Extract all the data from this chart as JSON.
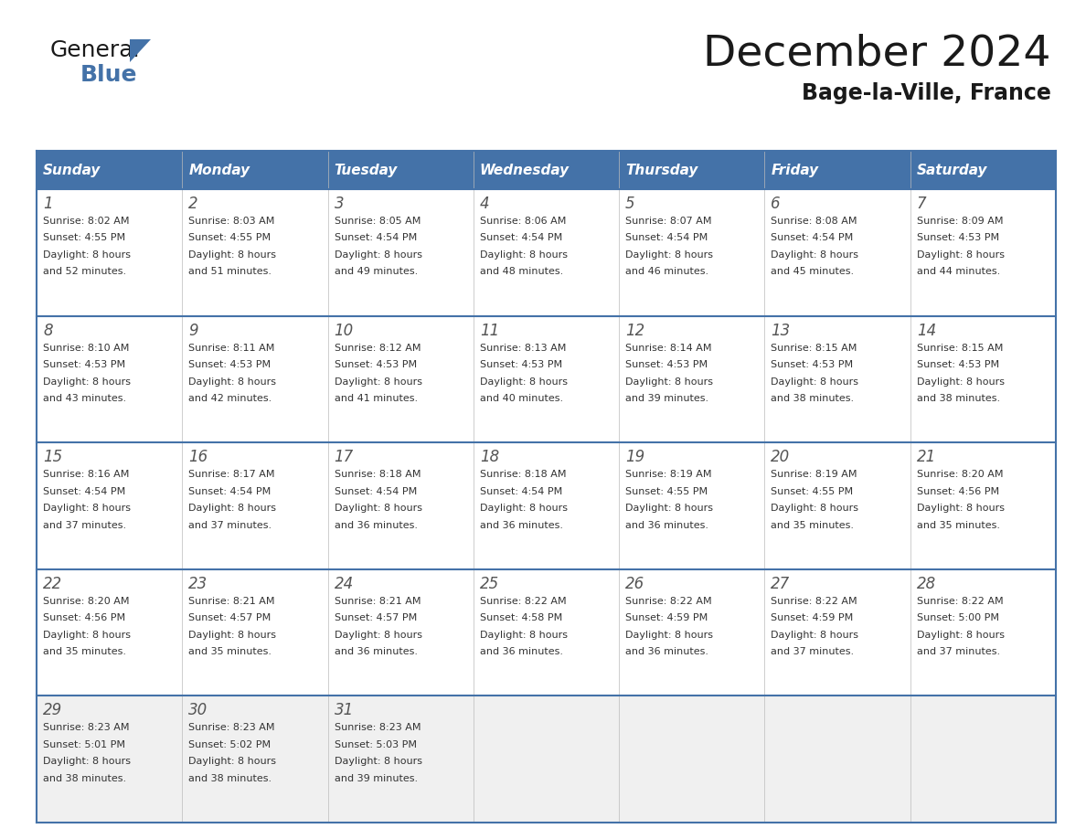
{
  "title": "December 2024",
  "subtitle": "Bage-la-Ville, France",
  "days_of_week": [
    "Sunday",
    "Monday",
    "Tuesday",
    "Wednesday",
    "Thursday",
    "Friday",
    "Saturday"
  ],
  "header_bg": "#4472a8",
  "header_text": "#ffffff",
  "row_bg_normal": "#ffffff",
  "row_bg_last": "#f0f0f0",
  "border_color": "#4472a8",
  "grid_color": "#bbbbbb",
  "text_color": "#333333",
  "day_num_color": "#555555",
  "title_color": "#1a1a1a",
  "logo_color_general": "#1a1a1a",
  "logo_color_blue": "#4472a8",
  "logo_triangle_color": "#4472a8",
  "calendar_data": [
    [
      {
        "day": 1,
        "sunrise": "8:02 AM",
        "sunset": "4:55 PM",
        "daylight": "8 hours and 52 minutes"
      },
      {
        "day": 2,
        "sunrise": "8:03 AM",
        "sunset": "4:55 PM",
        "daylight": "8 hours and 51 minutes"
      },
      {
        "day": 3,
        "sunrise": "8:05 AM",
        "sunset": "4:54 PM",
        "daylight": "8 hours and 49 minutes"
      },
      {
        "day": 4,
        "sunrise": "8:06 AM",
        "sunset": "4:54 PM",
        "daylight": "8 hours and 48 minutes"
      },
      {
        "day": 5,
        "sunrise": "8:07 AM",
        "sunset": "4:54 PM",
        "daylight": "8 hours and 46 minutes"
      },
      {
        "day": 6,
        "sunrise": "8:08 AM",
        "sunset": "4:54 PM",
        "daylight": "8 hours and 45 minutes"
      },
      {
        "day": 7,
        "sunrise": "8:09 AM",
        "sunset": "4:53 PM",
        "daylight": "8 hours and 44 minutes"
      }
    ],
    [
      {
        "day": 8,
        "sunrise": "8:10 AM",
        "sunset": "4:53 PM",
        "daylight": "8 hours and 43 minutes"
      },
      {
        "day": 9,
        "sunrise": "8:11 AM",
        "sunset": "4:53 PM",
        "daylight": "8 hours and 42 minutes"
      },
      {
        "day": 10,
        "sunrise": "8:12 AM",
        "sunset": "4:53 PM",
        "daylight": "8 hours and 41 minutes"
      },
      {
        "day": 11,
        "sunrise": "8:13 AM",
        "sunset": "4:53 PM",
        "daylight": "8 hours and 40 minutes"
      },
      {
        "day": 12,
        "sunrise": "8:14 AM",
        "sunset": "4:53 PM",
        "daylight": "8 hours and 39 minutes"
      },
      {
        "day": 13,
        "sunrise": "8:15 AM",
        "sunset": "4:53 PM",
        "daylight": "8 hours and 38 minutes"
      },
      {
        "day": 14,
        "sunrise": "8:15 AM",
        "sunset": "4:53 PM",
        "daylight": "8 hours and 38 minutes"
      }
    ],
    [
      {
        "day": 15,
        "sunrise": "8:16 AM",
        "sunset": "4:54 PM",
        "daylight": "8 hours and 37 minutes"
      },
      {
        "day": 16,
        "sunrise": "8:17 AM",
        "sunset": "4:54 PM",
        "daylight": "8 hours and 37 minutes"
      },
      {
        "day": 17,
        "sunrise": "8:18 AM",
        "sunset": "4:54 PM",
        "daylight": "8 hours and 36 minutes"
      },
      {
        "day": 18,
        "sunrise": "8:18 AM",
        "sunset": "4:54 PM",
        "daylight": "8 hours and 36 minutes"
      },
      {
        "day": 19,
        "sunrise": "8:19 AM",
        "sunset": "4:55 PM",
        "daylight": "8 hours and 36 minutes"
      },
      {
        "day": 20,
        "sunrise": "8:19 AM",
        "sunset": "4:55 PM",
        "daylight": "8 hours and 35 minutes"
      },
      {
        "day": 21,
        "sunrise": "8:20 AM",
        "sunset": "4:56 PM",
        "daylight": "8 hours and 35 minutes"
      }
    ],
    [
      {
        "day": 22,
        "sunrise": "8:20 AM",
        "sunset": "4:56 PM",
        "daylight": "8 hours and 35 minutes"
      },
      {
        "day": 23,
        "sunrise": "8:21 AM",
        "sunset": "4:57 PM",
        "daylight": "8 hours and 35 minutes"
      },
      {
        "day": 24,
        "sunrise": "8:21 AM",
        "sunset": "4:57 PM",
        "daylight": "8 hours and 36 minutes"
      },
      {
        "day": 25,
        "sunrise": "8:22 AM",
        "sunset": "4:58 PM",
        "daylight": "8 hours and 36 minutes"
      },
      {
        "day": 26,
        "sunrise": "8:22 AM",
        "sunset": "4:59 PM",
        "daylight": "8 hours and 36 minutes"
      },
      {
        "day": 27,
        "sunrise": "8:22 AM",
        "sunset": "4:59 PM",
        "daylight": "8 hours and 37 minutes"
      },
      {
        "day": 28,
        "sunrise": "8:22 AM",
        "sunset": "5:00 PM",
        "daylight": "8 hours and 37 minutes"
      }
    ],
    [
      {
        "day": 29,
        "sunrise": "8:23 AM",
        "sunset": "5:01 PM",
        "daylight": "8 hours and 38 minutes"
      },
      {
        "day": 30,
        "sunrise": "8:23 AM",
        "sunset": "5:02 PM",
        "daylight": "8 hours and 38 minutes"
      },
      {
        "day": 31,
        "sunrise": "8:23 AM",
        "sunset": "5:03 PM",
        "daylight": "8 hours and 39 minutes"
      },
      null,
      null,
      null,
      null
    ]
  ]
}
